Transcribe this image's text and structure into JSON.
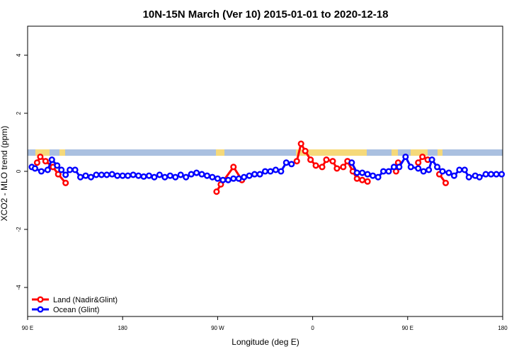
{
  "chart_data": {
    "type": "line",
    "title": "10N-15N March (Ver 10)   2015-01-01 to 2020-12-18",
    "xlabel": "Longitude (deg E)",
    "ylabel": "XCO2 - MLO trend (ppm)",
    "xlim": [
      90,
      540
    ],
    "ylim": [
      -5,
      5
    ],
    "xticks": [
      {
        "value": 90,
        "label": "90 E"
      },
      180,
      {
        "value": 270,
        "label": "90 W"
      },
      {
        "value": 360,
        "label": "0"
      },
      {
        "value": 450,
        "label": "90 E"
      },
      {
        "value": 540,
        "label": "180"
      }
    ],
    "yticks": [
      -4,
      -2,
      0,
      2,
      4
    ],
    "legend": "bottom-left",
    "series": [
      {
        "name": "Land (Nadir&Glint)",
        "color": "#ff0000",
        "x": [
          99,
          102,
          107,
          114,
          119,
          126,
          200,
          269,
          273,
          285,
          293,
          320,
          345,
          349,
          353,
          358,
          363,
          369,
          373,
          379,
          383,
          389,
          393,
          398,
          402,
          407,
          412,
          425,
          439,
          441,
          455,
          460,
          464,
          469,
          475,
          480,
          486
        ],
        "values": [
          0.3,
          0.5,
          0.35,
          0.15,
          -0.1,
          -0.4,
          null,
          -0.7,
          -0.45,
          0.15,
          -0.3,
          null,
          0.35,
          0.95,
          0.7,
          0.4,
          0.2,
          0.15,
          0.4,
          0.35,
          0.1,
          0.15,
          0.35,
          0.0,
          -0.25,
          -0.3,
          -0.35,
          null,
          0.0,
          0.3,
          null,
          0.3,
          0.5,
          0.4,
          null,
          -0.1,
          -0.4
        ]
      },
      {
        "name": "Ocean (Glint)",
        "color": "#0000ff",
        "x": [
          94,
          97,
          103,
          109,
          113,
          118,
          122,
          126,
          130,
          135,
          140,
          145,
          150,
          155,
          160,
          165,
          170,
          175,
          180,
          185,
          190,
          195,
          200,
          205,
          210,
          215,
          220,
          225,
          230,
          235,
          240,
          245,
          250,
          255,
          260,
          265,
          270,
          275,
          280,
          285,
          290,
          295,
          300,
          305,
          310,
          315,
          320,
          325,
          330,
          335,
          340,
          370,
          397,
          402,
          407,
          412,
          417,
          422,
          427,
          432,
          437,
          442,
          448,
          453,
          460,
          465,
          470,
          473,
          478,
          483,
          489,
          494,
          499,
          504,
          508,
          514,
          518,
          524,
          529,
          534,
          539
        ],
        "values": [
          0.15,
          0.1,
          0.0,
          0.05,
          0.4,
          0.2,
          0.05,
          -0.12,
          0.05,
          0.05,
          -0.2,
          -0.15,
          -0.2,
          -0.12,
          -0.12,
          -0.12,
          -0.1,
          -0.15,
          -0.15,
          -0.15,
          -0.12,
          -0.15,
          -0.18,
          -0.15,
          -0.2,
          -0.12,
          -0.2,
          -0.15,
          -0.2,
          -0.12,
          -0.2,
          -0.1,
          -0.05,
          -0.1,
          -0.15,
          -0.2,
          -0.25,
          -0.3,
          -0.3,
          -0.25,
          -0.25,
          -0.2,
          -0.15,
          -0.1,
          -0.1,
          0.0,
          0.0,
          0.05,
          0.0,
          0.3,
          0.25,
          null,
          0.3,
          -0.05,
          -0.05,
          -0.1,
          -0.15,
          -0.2,
          0.0,
          0.0,
          0.15,
          0.15,
          0.5,
          0.15,
          0.1,
          0.0,
          0.05,
          0.4,
          0.15,
          0.0,
          -0.05,
          -0.15,
          0.05,
          0.05,
          -0.2,
          -0.15,
          -0.2,
          -0.1,
          -0.1,
          -0.1,
          -0.1
        ]
      }
    ]
  }
}
